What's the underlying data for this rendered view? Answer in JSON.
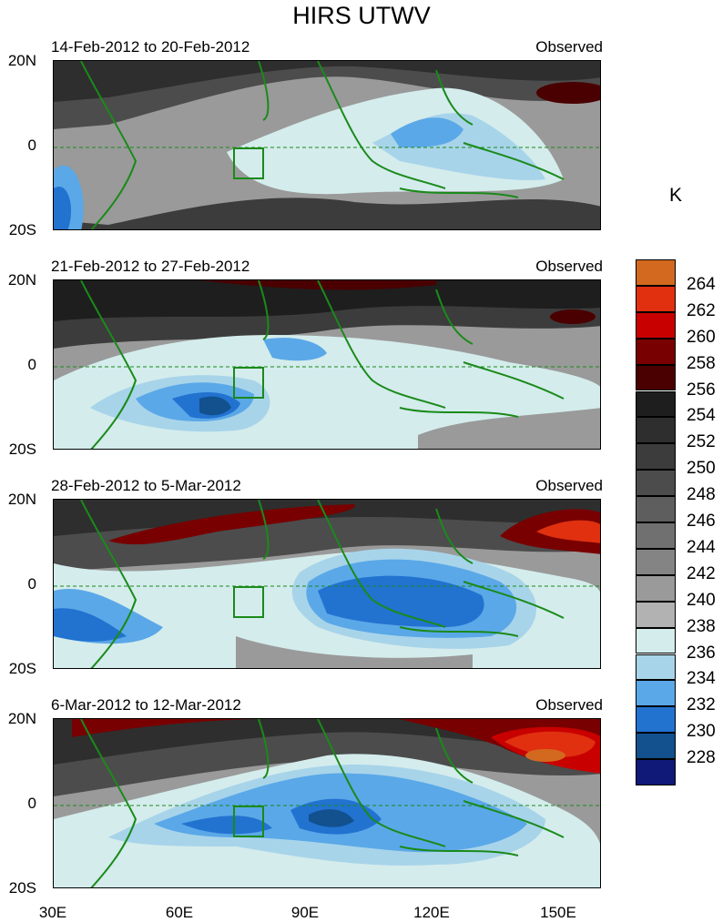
{
  "title": "HIRS UTWV",
  "unit": "K",
  "panels": [
    {
      "period": "14-Feb-2012 to 20-Feb-2012",
      "label": "Observed"
    },
    {
      "period": "21-Feb-2012 to 27-Feb-2012",
      "label": "Observed"
    },
    {
      "period": "28-Feb-2012 to 5-Mar-2012",
      "label": "Observed"
    },
    {
      "period": "6-Mar-2012 to 12-Mar-2012",
      "label": "Observed"
    }
  ],
  "y_labels": {
    "top": "20N",
    "mid": "0",
    "bottom": "20S"
  },
  "x_labels": [
    "30E",
    "60E",
    "90E",
    "120E",
    "150E"
  ],
  "colorbar": {
    "labels": [
      "264",
      "262",
      "260",
      "258",
      "256",
      "254",
      "252",
      "250",
      "248",
      "246",
      "244",
      "242",
      "240",
      "238",
      "236",
      "234",
      "232",
      "230",
      "228"
    ],
    "colors": [
      "#d2691e",
      "#e03010",
      "#c80000",
      "#780000",
      "#4a0000",
      "#1e1e1e",
      "#2e2e2e",
      "#3c3c3c",
      "#4c4c4c",
      "#5e5e5e",
      "#707070",
      "#848484",
      "#9a9a9a",
      "#b2b2b2",
      "#d4ecec",
      "#a8d4ea",
      "#5aa8e8",
      "#2272d0",
      "#12508e",
      "#101878"
    ]
  },
  "land_color": "#1a8a1a"
}
